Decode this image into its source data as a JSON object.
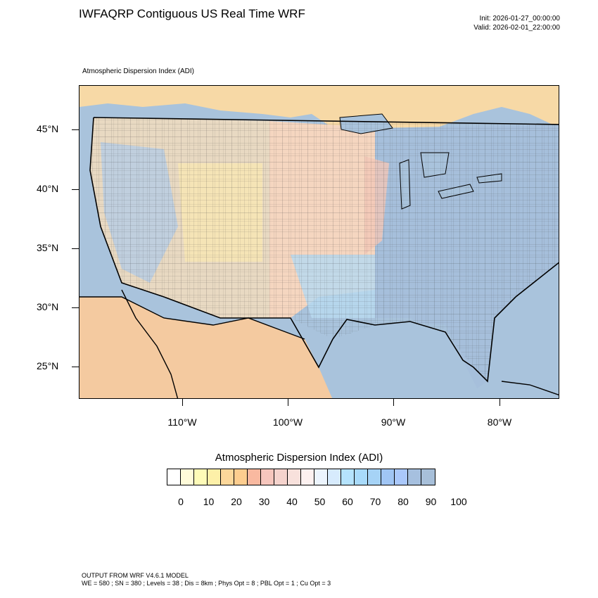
{
  "header": {
    "title": "IWFAQRP Contiguous US Real Time WRF",
    "init": "Init: 2026-01-27_00:00:00",
    "valid": "Valid: 2026-02-01_22:00:00"
  },
  "map": {
    "subtitle": "Atmospheric Dispersion Index   (ADI)",
    "lat_labels": [
      "45°N",
      "40°N",
      "35°N",
      "30°N",
      "25°N"
    ],
    "lon_labels": [
      "110°W",
      "100°W",
      "90°W",
      "80°W"
    ],
    "ocean_color": "#a9c3dc",
    "land_base_color": "#f3e7c9"
  },
  "colorbar": {
    "title": "Atmospheric Dispersion Index  (ADI)",
    "labels": [
      "0",
      "10",
      "20",
      "30",
      "40",
      "50",
      "60",
      "70",
      "80",
      "90",
      "100"
    ],
    "colors": [
      "#ffffff",
      "#fffbd9",
      "#fefbb8",
      "#fdf0a8",
      "#fcd79a",
      "#fdcd8f",
      "#f9b9a0",
      "#f6c6bd",
      "#f5d3cd",
      "#f8e1dc",
      "#fdf1f0",
      "#ecf4fd",
      "#d7ebfd",
      "#b5e3fd",
      "#a8dafa",
      "#a6d3f6",
      "#a0c5f4",
      "#aac8fb",
      "#a6c0df",
      "#a7bfd9"
    ]
  },
  "footer": {
    "line1": "OUTPUT FROM WRF V4.6.1 MODEL",
    "line2": "WE = 580 ; SN = 380 ; Levels = 38 ; Dis = 8km ; Phys Opt = 8 ; PBL Opt = 1 ; Cu Opt = 3"
  }
}
